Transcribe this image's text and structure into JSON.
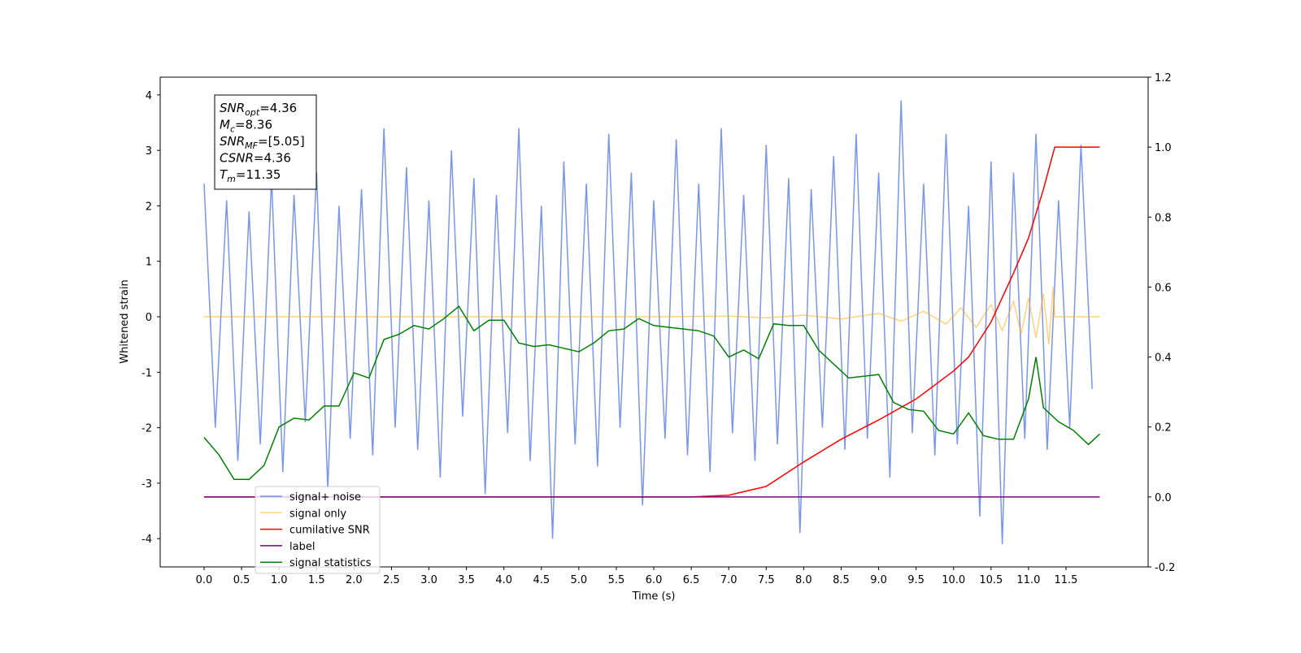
{
  "chart_data": {
    "type": "line",
    "x_label": "Time (s)",
    "y_label": "Whitened strain",
    "xlim": [
      -0.586,
      12.596
    ],
    "ylim": [
      -4.51,
      4.32
    ],
    "y2lim": [
      -0.2,
      1.2
    ],
    "xticks": [
      {
        "value": 0,
        "label": "0.0"
      },
      0.5,
      {
        "value": 1,
        "label": "1.0"
      },
      1.5,
      {
        "value": 2,
        "label": "2.0"
      },
      2.5,
      {
        "value": 3,
        "label": "3.0"
      },
      3.5,
      {
        "value": 4,
        "label": "4.0"
      },
      4.5,
      {
        "value": 5,
        "label": "5.0"
      },
      5.5,
      {
        "value": 6,
        "label": "6.0"
      },
      6.5,
      {
        "value": 7,
        "label": "7.0"
      },
      7.5,
      {
        "value": 8,
        "label": "8.0"
      },
      8.5,
      {
        "value": 9,
        "label": "9.0"
      },
      9.5,
      {
        "value": 10,
        "label": "10.0"
      },
      10.5,
      {
        "value": 11,
        "label": "11.0"
      },
      11.5
    ],
    "yticks": [
      -4,
      -3,
      -2,
      -1,
      0,
      1,
      2,
      3,
      4
    ],
    "y2ticks": [
      -0.2,
      {
        "value": 0,
        "label": "0.0"
      },
      0.2,
      0.4,
      0.6,
      0.8,
      {
        "value": 1,
        "label": "1.0"
      },
      1.2
    ],
    "legend": "lower left",
    "annotation_box": [
      {
        "base": "SNR",
        "sub": "opt",
        "text": "=4.36"
      },
      {
        "base": "M",
        "sub": "c",
        "text": "=8.36"
      },
      {
        "base": "SNR",
        "sub": "MF",
        "text": "=[5.05]"
      },
      {
        "base": "CSNR",
        "text": "=4.36"
      },
      {
        "base": "T",
        "sub": "m",
        "text": "=11.35"
      }
    ],
    "series": [
      {
        "name": "signal+ noise",
        "color": "#4169e1",
        "alpha": 0.7,
        "x": [
          0,
          0.15,
          0.3,
          0.45,
          0.6,
          0.75,
          0.9,
          1.05,
          1.2,
          1.35,
          1.5,
          1.65,
          1.8,
          1.95,
          2.1,
          2.25,
          2.4,
          2.55,
          2.7,
          2.85,
          3,
          3.15,
          3.3,
          3.45,
          3.6,
          3.75,
          3.9,
          4.05,
          4.2,
          4.35,
          4.5,
          4.65,
          4.8,
          4.95,
          5.1,
          5.25,
          5.4,
          5.55,
          5.7,
          5.85,
          6,
          6.15,
          6.3,
          6.45,
          6.6,
          6.75,
          6.9,
          7.05,
          7.2,
          7.35,
          7.5,
          7.65,
          7.8,
          7.95,
          8.1,
          8.25,
          8.4,
          8.55,
          8.7,
          8.85,
          9,
          9.15,
          9.3,
          9.45,
          9.6,
          9.75,
          9.9,
          10.05,
          10.2,
          10.35,
          10.5,
          10.65,
          10.8,
          10.95,
          11.1,
          11.25,
          11.4,
          11.55,
          11.7,
          11.85
        ],
        "values": [
          2.4,
          -2.0,
          2.1,
          -2.6,
          1.9,
          -2.3,
          2.5,
          -2.8,
          2.2,
          -1.9,
          2.6,
          -3.1,
          2.0,
          -2.2,
          2.3,
          -2.5,
          3.4,
          -2.0,
          2.7,
          -2.4,
          2.1,
          -2.9,
          3.0,
          -1.8,
          2.5,
          -3.2,
          2.2,
          -2.1,
          3.4,
          -2.6,
          2.0,
          -4.0,
          2.8,
          -2.3,
          2.4,
          -2.7,
          3.3,
          -2.0,
          2.6,
          -3.4,
          2.1,
          -2.2,
          3.2,
          -2.5,
          2.4,
          -2.8,
          3.4,
          -2.1,
          2.2,
          -2.6,
          3.1,
          -2.3,
          2.5,
          -3.9,
          2.3,
          -2.0,
          2.9,
          -2.4,
          3.3,
          -2.2,
          2.6,
          -2.9,
          3.9,
          -2.1,
          2.4,
          -2.5,
          3.3,
          -2.3,
          2.0,
          -3.6,
          2.8,
          -4.1,
          2.6,
          -2.2,
          3.3,
          -2.4,
          2.1,
          -2.0,
          3.1,
          -1.3
        ]
      },
      {
        "name": "signal only",
        "color": "#ffa500",
        "alpha": 0.5,
        "x": [
          0,
          6,
          7,
          7.5,
          8,
          8.5,
          9,
          9.3,
          9.6,
          9.9,
          10.1,
          10.3,
          10.5,
          10.65,
          10.8,
          10.9,
          11.0,
          11.1,
          11.2,
          11.27,
          11.33,
          11.35,
          11.95
        ],
        "values": [
          0,
          0,
          0.01,
          -0.02,
          0.03,
          -0.04,
          0.06,
          -0.08,
          0.1,
          -0.13,
          0.16,
          -0.19,
          0.22,
          -0.25,
          0.28,
          -0.31,
          0.34,
          -0.38,
          0.42,
          -0.5,
          0.55,
          0,
          0
        ]
      },
      {
        "name": "cumilative SNR",
        "color": "#ff0000",
        "alpha": 1,
        "axis": "y2",
        "x": [
          0,
          6.5,
          7,
          7.5,
          8,
          8.5,
          9,
          9.5,
          10,
          10.2,
          10.5,
          10.8,
          11,
          11.2,
          11.3,
          11.35,
          11.95
        ],
        "values": [
          0,
          0,
          0.005,
          0.03,
          0.1,
          0.165,
          0.22,
          0.28,
          0.36,
          0.4,
          0.5,
          0.64,
          0.74,
          0.88,
          0.96,
          1,
          1
        ]
      },
      {
        "name": "label",
        "color": "#800080",
        "alpha": 1,
        "axis": "y2",
        "x": [
          0,
          11.95
        ],
        "values": [
          0,
          0
        ]
      },
      {
        "name": "signal statistics",
        "color": "#008000",
        "alpha": 1,
        "axis": "y2",
        "x": [
          0,
          0.2,
          0.4,
          0.6,
          0.8,
          1,
          1.2,
          1.4,
          1.6,
          1.8,
          2,
          2.2,
          2.4,
          2.6,
          2.8,
          3,
          3.2,
          3.4,
          3.6,
          3.8,
          4,
          4.2,
          4.4,
          4.6,
          4.8,
          5,
          5.2,
          5.4,
          5.6,
          5.8,
          6,
          6.2,
          6.4,
          6.6,
          6.8,
          7,
          7.2,
          7.4,
          7.6,
          7.8,
          8,
          8.2,
          8.4,
          8.6,
          8.8,
          9,
          9.2,
          9.4,
          9.6,
          9.8,
          10,
          10.2,
          10.4,
          10.6,
          10.8,
          11,
          11.1,
          11.2,
          11.4,
          11.6,
          11.8,
          11.95
        ],
        "values": [
          0.17,
          0.12,
          0.05,
          0.05,
          0.09,
          0.2,
          0.225,
          0.22,
          0.26,
          0.26,
          0.355,
          0.34,
          0.45,
          0.465,
          0.49,
          0.48,
          0.51,
          0.545,
          0.475,
          0.505,
          0.505,
          0.44,
          0.43,
          0.435,
          0.425,
          0.415,
          0.44,
          0.475,
          0.48,
          0.51,
          0.49,
          0.485,
          0.48,
          0.475,
          0.46,
          0.4,
          0.42,
          0.395,
          0.495,
          0.49,
          0.49,
          0.42,
          0.38,
          0.34,
          0.345,
          0.35,
          0.27,
          0.25,
          0.245,
          0.19,
          0.18,
          0.24,
          0.175,
          0.165,
          0.165,
          0.28,
          0.4,
          0.255,
          0.215,
          0.19,
          0.15,
          0.18
        ]
      }
    ]
  }
}
